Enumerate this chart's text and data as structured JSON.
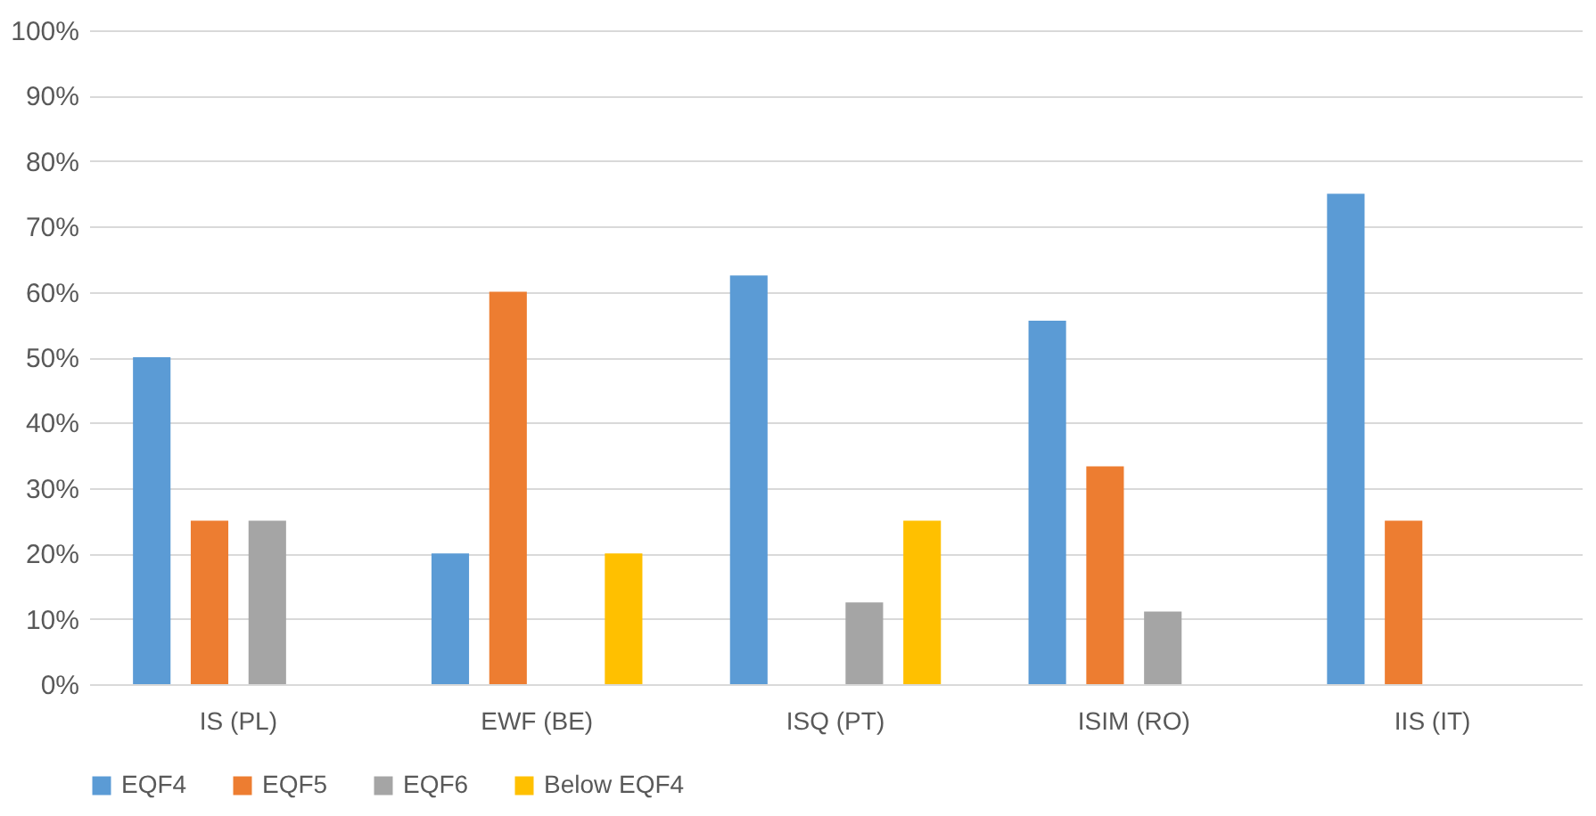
{
  "chart_data": {
    "type": "bar",
    "categories": [
      "IS (PL)",
      "EWF (BE)",
      "ISQ (PT)",
      "ISIM (RO)",
      "IIS (IT)"
    ],
    "series": [
      {
        "name": "EQF4",
        "color": "#5b9bd5",
        "values": [
          50,
          20,
          62.5,
          55.6,
          75
        ]
      },
      {
        "name": "EQF5",
        "color": "#ed7d31",
        "values": [
          25,
          60,
          null,
          33.3,
          25
        ]
      },
      {
        "name": "EQF6",
        "color": "#a5a5a5",
        "values": [
          25,
          null,
          12.5,
          11.1,
          null
        ]
      },
      {
        "name": "Below EQF4",
        "color": "#ffc000",
        "values": [
          null,
          20,
          25,
          null,
          null
        ]
      }
    ],
    "ylim": [
      0,
      100
    ],
    "yticks": [
      {
        "value": 0,
        "label": "0%"
      },
      {
        "value": 10,
        "label": "10%"
      },
      {
        "value": 20,
        "label": "20%"
      },
      {
        "value": 30,
        "label": "30%"
      },
      {
        "value": 40,
        "label": "40%"
      },
      {
        "value": 50,
        "label": "50%"
      },
      {
        "value": 60,
        "label": "60%"
      },
      {
        "value": 70,
        "label": "70%"
      },
      {
        "value": 80,
        "label": "80%"
      },
      {
        "value": 90,
        "label": "90%"
      },
      {
        "value": 100,
        "label": "100%"
      }
    ],
    "grid": "y",
    "legend": "bottom"
  }
}
